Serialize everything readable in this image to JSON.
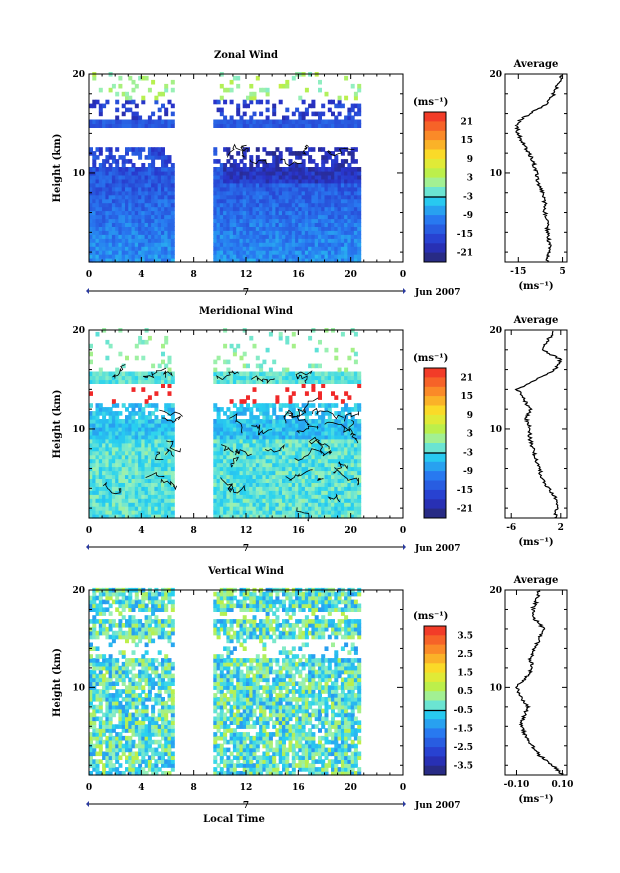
{
  "figure": {
    "xlabel": "Local Time",
    "date_label": "Jun 2007",
    "day_label": "7",
    "side_title": "Average",
    "unit_label": "(ms⁻¹)"
  },
  "chart_data": [
    {
      "type": "heatmap",
      "title": "Zonal Wind",
      "ylabel": "Height (km)",
      "x_ticks": [
        "0",
        "4",
        "8",
        "12",
        "16",
        "20",
        "0"
      ],
      "y_ticks": [
        "10",
        "20"
      ],
      "xlim": [
        0,
        24
      ],
      "ylim": [
        1,
        20
      ],
      "data_gap_hours": [
        6.5,
        9.5
      ],
      "data_end_hour": 20.7,
      "colorbar_unit": "(ms⁻¹)",
      "colorbar_ticks": [
        "21",
        "15",
        "9",
        "3",
        "-3",
        "-9",
        "-15",
        "-21"
      ],
      "colorbar_range": [
        -24,
        24
      ],
      "profile": {
        "title": "Average",
        "x_ticks": [
          "-15",
          "5"
        ],
        "y_ticks": [
          "10",
          "20"
        ],
        "xlim": [
          -21,
          7
        ],
        "xlabel": "(ms⁻¹)",
        "heights": [
          1,
          2,
          3,
          4,
          5,
          6,
          7,
          8,
          9,
          10,
          11,
          12,
          13,
          14,
          15,
          16,
          17,
          18,
          19,
          20
        ],
        "values": [
          -2,
          -1,
          -1,
          -2,
          -2,
          -3,
          -3,
          -4,
          -6,
          -7,
          -8,
          -10,
          -13,
          -15,
          -16,
          -10,
          -2,
          1,
          3,
          5
        ]
      }
    },
    {
      "type": "heatmap",
      "title": "Meridional Wind",
      "ylabel": "Height (km)",
      "x_ticks": [
        "0",
        "4",
        "8",
        "12",
        "16",
        "20",
        "0"
      ],
      "y_ticks": [
        "10",
        "20"
      ],
      "xlim": [
        0,
        24
      ],
      "ylim": [
        1,
        20
      ],
      "data_gap_hours": [
        6.5,
        9.5
      ],
      "data_end_hour": 20.7,
      "colorbar_unit": "(ms⁻¹)",
      "colorbar_ticks": [
        "21",
        "15",
        "9",
        "3",
        "-3",
        "-9",
        "-15",
        "-21"
      ],
      "colorbar_range": [
        -24,
        24
      ],
      "profile": {
        "title": "Average",
        "x_ticks": [
          "-6",
          "2"
        ],
        "y_ticks": [
          "10",
          "20"
        ],
        "xlim": [
          -7,
          3
        ],
        "xlabel": "(ms⁻¹)",
        "heights": [
          1,
          2,
          3,
          4,
          5,
          6,
          7,
          8,
          9,
          10,
          11,
          12,
          13,
          14,
          15,
          16,
          17,
          18,
          19,
          20
        ],
        "values": [
          1,
          1.5,
          1.2,
          0,
          -1,
          -1.5,
          -2,
          -2.5,
          -3,
          -3,
          -3.5,
          -3,
          -4,
          -5,
          -2,
          1,
          2,
          -1,
          0,
          1
        ]
      }
    },
    {
      "type": "heatmap",
      "title": "Vertical Wind",
      "ylabel": "Height (km)",
      "x_ticks": [
        "0",
        "4",
        "8",
        "12",
        "16",
        "20",
        "0"
      ],
      "y_ticks": [
        "10",
        "20"
      ],
      "xlim": [
        0,
        24
      ],
      "ylim": [
        1,
        20
      ],
      "data_gap_hours": [
        6.5,
        9.5
      ],
      "data_end_hour": 20.7,
      "colorbar_unit": "(ms⁻¹)",
      "colorbar_ticks": [
        "3.5",
        "2.5",
        "1.5",
        "0.5",
        "-0.5",
        "-1.5",
        "-2.5",
        "-3.5"
      ],
      "colorbar_range": [
        -4,
        4
      ],
      "profile": {
        "title": "Average",
        "x_ticks": [
          "-0.10",
          "0.10"
        ],
        "y_ticks": [
          "10",
          "20"
        ],
        "xlim": [
          -0.15,
          0.12
        ],
        "xlabel": "(ms⁻¹)",
        "heights": [
          1,
          2,
          3,
          4,
          5,
          6,
          7,
          8,
          9,
          10,
          11,
          12,
          13,
          14,
          15,
          16,
          17,
          18,
          19,
          20
        ],
        "values": [
          0.1,
          0.06,
          0,
          -0.03,
          -0.06,
          -0.08,
          -0.07,
          -0.05,
          -0.08,
          -0.1,
          -0.06,
          -0.03,
          -0.04,
          -0.02,
          0,
          0.02,
          -0.02,
          -0.03,
          -0.01,
          0
        ]
      }
    }
  ]
}
